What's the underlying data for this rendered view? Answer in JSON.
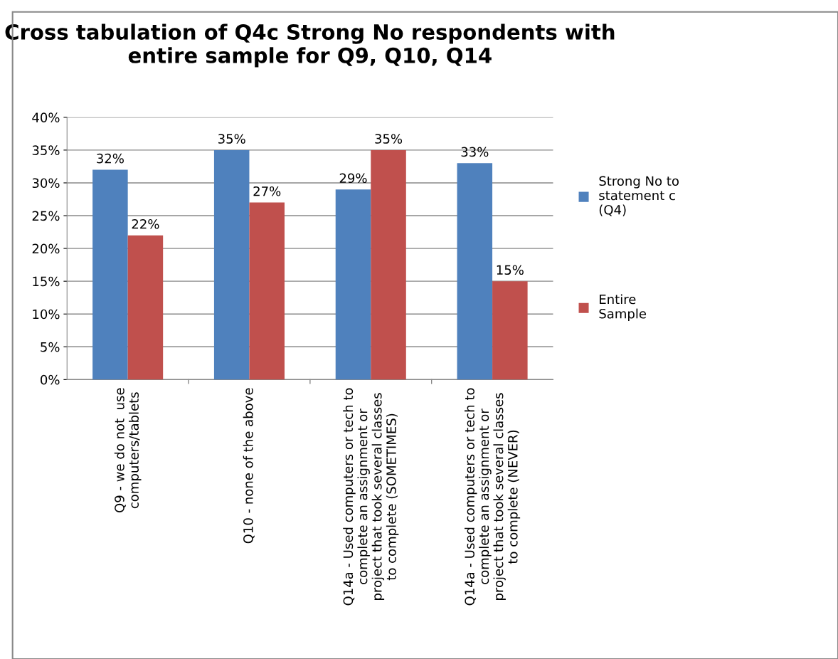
{
  "chart_data": {
    "type": "bar",
    "title": "Cross tabulation of Q4c Strong No respondents with\nentire sample for Q9, Q10, Q14",
    "categories": [
      "Q9 - we do not  use\ncomputers/tablets",
      "Q10 - none of the above",
      "Q14a - Used computers or tech to\ncomplete an assignment or\nproject that took several classes\nto complete (SOMETIMES)",
      "Q14a - Used computers or tech to\ncomplete an assignment or\nproject that took several classes\nto complete (NEVER)"
    ],
    "series": [
      {
        "name": "Strong No to\nstatement c\n(Q4)",
        "color": "#4f81bd",
        "values": [
          32,
          35,
          29,
          33
        ],
        "value_labels": [
          "32%",
          "35%",
          "29%",
          "33%"
        ]
      },
      {
        "name": "Entire\nSample",
        "color": "#c0504d",
        "values": [
          22,
          27,
          35,
          15
        ],
        "value_labels": [
          "22%",
          "27%",
          "35%",
          "15%"
        ]
      }
    ],
    "ylim": [
      0,
      40
    ],
    "yticks": [
      {
        "value": 0,
        "label": "0%"
      },
      {
        "value": 5,
        "label": "5%"
      },
      {
        "value": 10,
        "label": "10%"
      },
      {
        "value": 15,
        "label": "15%"
      },
      {
        "value": 20,
        "label": "20%"
      },
      {
        "value": 25,
        "label": "25%"
      },
      {
        "value": 30,
        "label": "30%"
      },
      {
        "value": 35,
        "label": "35%"
      },
      {
        "value": 40,
        "label": "40%"
      }
    ],
    "grid": "y",
    "legend": "right"
  }
}
